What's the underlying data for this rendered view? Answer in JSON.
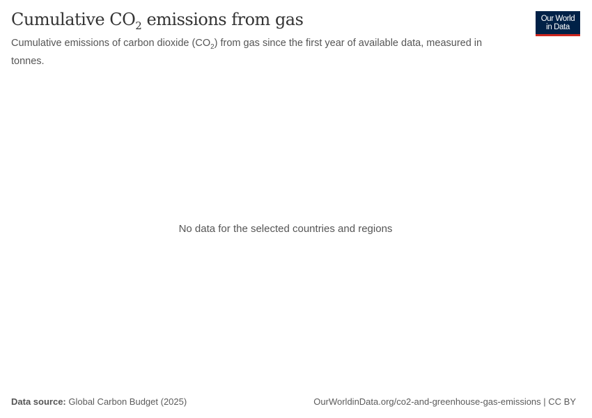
{
  "header": {
    "title_pre": "Cumulative CO",
    "title_sub": "2",
    "title_post": " emissions from gas",
    "subtitle_pre": "Cumulative emissions of carbon dioxide (CO",
    "subtitle_sub": "2",
    "subtitle_post": ") from gas since the first year of available data, measured in tonnes.",
    "logo_line1": "Our World",
    "logo_line2": "in Data"
  },
  "chart_data": {
    "type": "line",
    "title": "Cumulative CO2 emissions from gas",
    "message": "No data for the selected countries and regions",
    "series": []
  },
  "footer": {
    "source_label": "Data source:",
    "source_value": " Global Carbon Budget (2025)",
    "url": "OurWorldinData.org/co2-and-greenhouse-gas-emissions | CC BY"
  },
  "colors": {
    "logo_bg": "#002147",
    "logo_accent": "#ce261e"
  }
}
